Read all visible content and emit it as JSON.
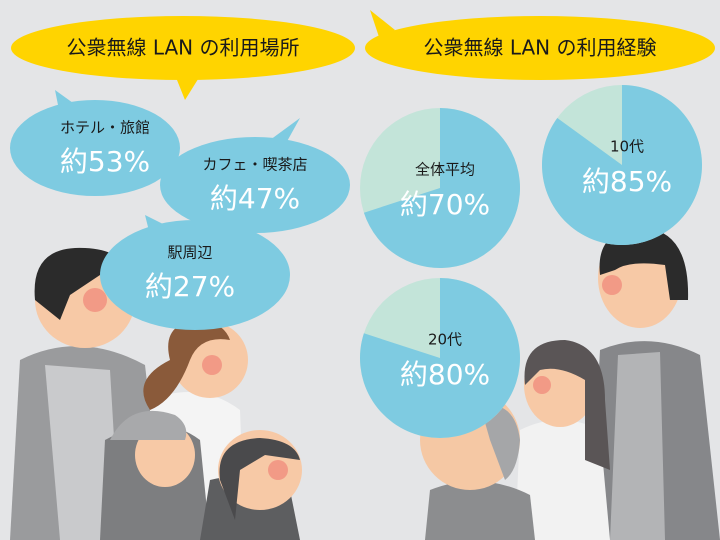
{
  "left": {
    "title": "公衆無線 LAN の利用場所",
    "bubbles": [
      {
        "label": "ホテル・旅館",
        "value_label": "約53%"
      },
      {
        "label": "カフェ・喫茶店",
        "value_label": "約47%"
      },
      {
        "label": "駅周辺",
        "value_label": "約27%"
      }
    ]
  },
  "right": {
    "title": "公衆無線 LAN の利用経験",
    "pies": [
      {
        "label": "全体平均",
        "value": 70,
        "value_label": "約70%"
      },
      {
        "label": "10代",
        "value": 85,
        "value_label": "約85%"
      },
      {
        "label": "20代",
        "value": 80,
        "value_label": "約80%"
      }
    ]
  }
}
